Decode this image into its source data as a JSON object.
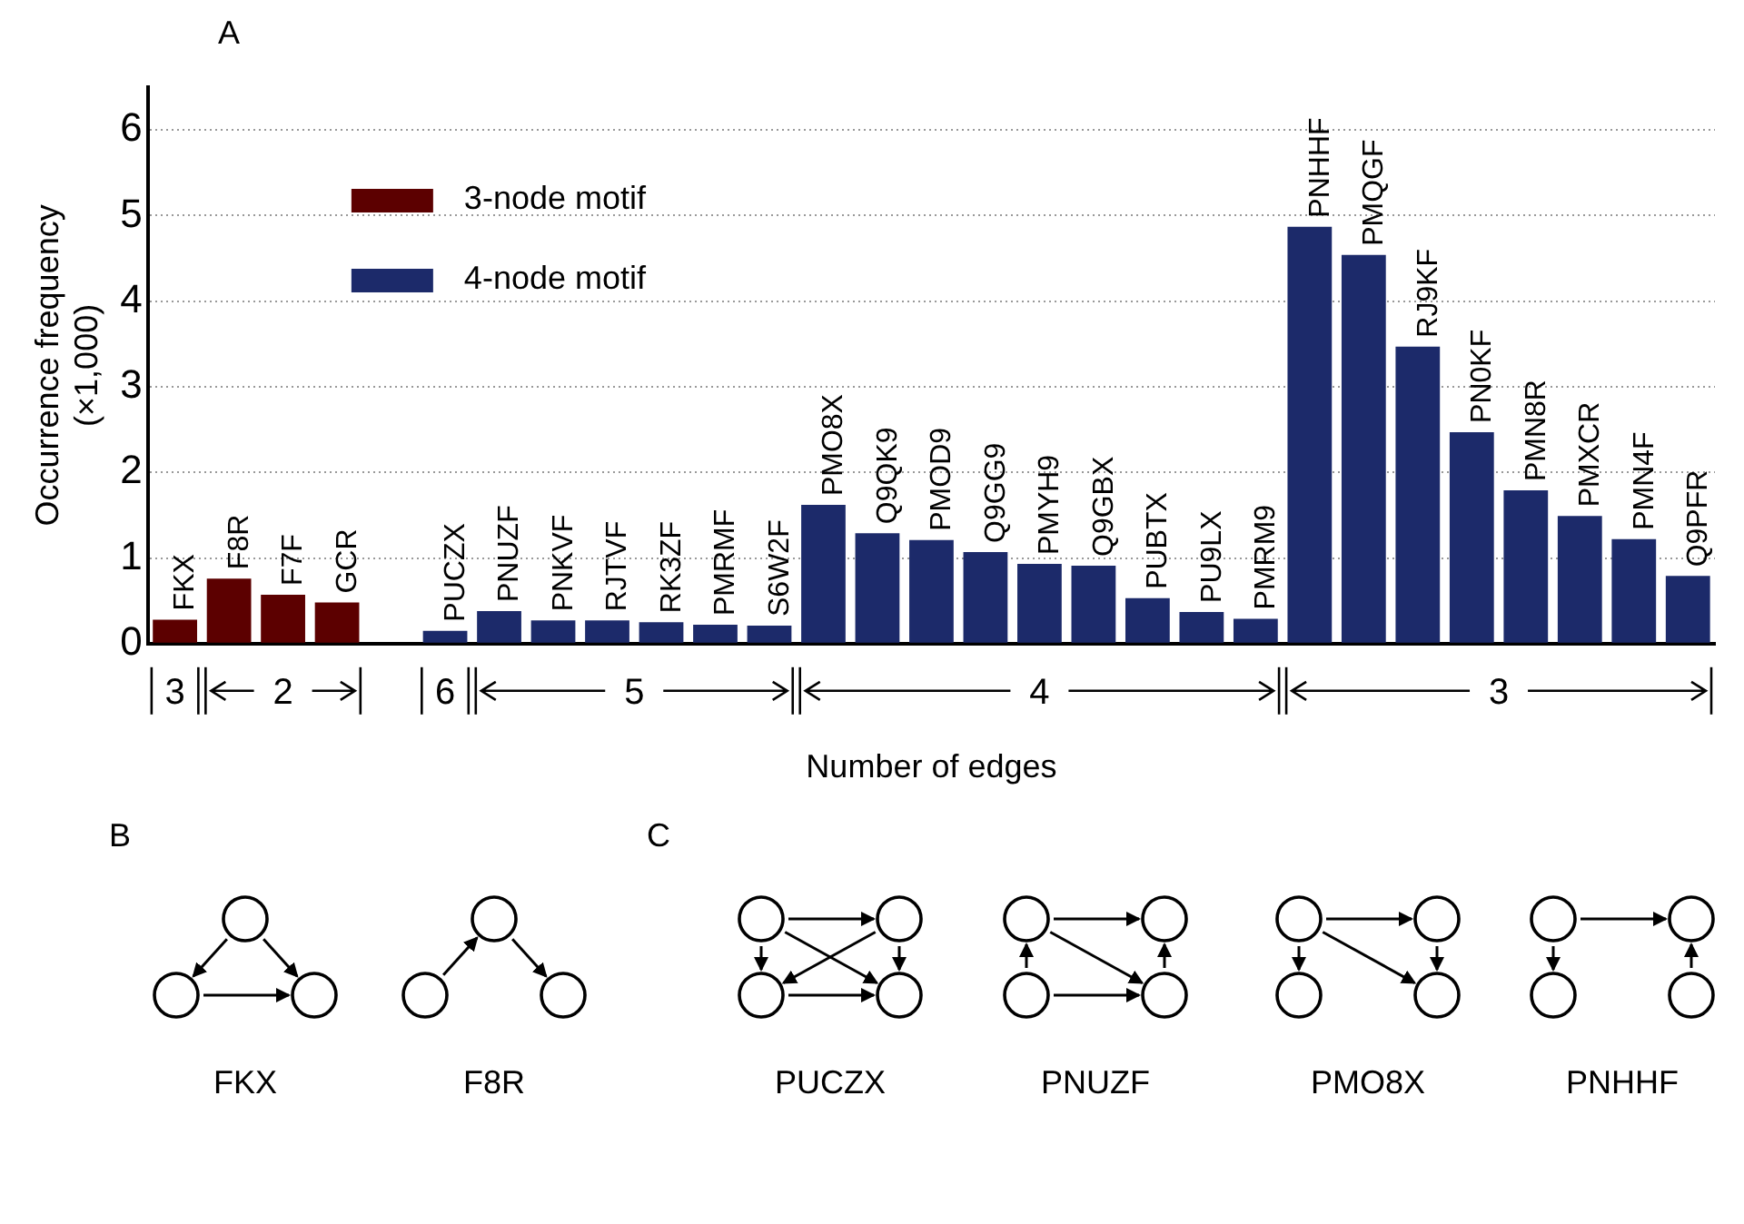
{
  "chart_data": {
    "type": "bar",
    "xlabel": "Number of edges",
    "ylabel": "Occurrence frequency\n(×1,000)",
    "categories": [
      "FKX",
      "F8R",
      "F7F",
      "GCR",
      null,
      "PUCZX",
      "PNUZF",
      "PNKVF",
      "RJTVF",
      "RK3ZF",
      "PMRMF",
      "S6W2F",
      "PMO8X",
      "Q9QK9",
      "PMOD9",
      "Q9GG9",
      "PMYH9",
      "Q9GBX",
      "PUBTX",
      "PU9LX",
      "PMRM9",
      "PNHHF",
      "PMQGF",
      "RJ9KF",
      "PN0KF",
      "PMN8R",
      "PMXCR",
      "PMN4F",
      "Q9PFR"
    ],
    "series": [
      {
        "name": "3-node motif",
        "color": "#5c0000",
        "values": [
          0.28,
          0.76,
          0.57,
          0.48,
          null,
          null,
          null,
          null,
          null,
          null,
          null,
          null,
          null,
          null,
          null,
          null,
          null,
          null,
          null,
          null,
          null,
          null,
          null,
          null,
          null,
          null,
          null,
          null,
          null
        ]
      },
      {
        "name": "4-node motif",
        "color": "#1c2a6a",
        "values": [
          null,
          null,
          null,
          null,
          null,
          0.15,
          0.38,
          0.27,
          0.27,
          0.25,
          0.22,
          0.21,
          1.62,
          1.29,
          1.21,
          1.07,
          0.93,
          0.91,
          0.53,
          0.37,
          0.29,
          4.87,
          4.54,
          3.47,
          2.47,
          1.79,
          1.49,
          1.22,
          0.79
        ]
      }
    ],
    "ylim": [
      0,
      6.5
    ],
    "yticks": [
      0,
      1,
      2,
      3,
      4,
      5,
      6
    ],
    "grid": "y",
    "legend": "top left",
    "annotations": [
      "A",
      "3",
      "2",
      "6",
      "5",
      "4",
      "3",
      "B",
      "C",
      "FKX",
      "F8R",
      "PUCZX",
      "PNUZF",
      "PMO8X",
      "PNHHF"
    ]
  }
}
